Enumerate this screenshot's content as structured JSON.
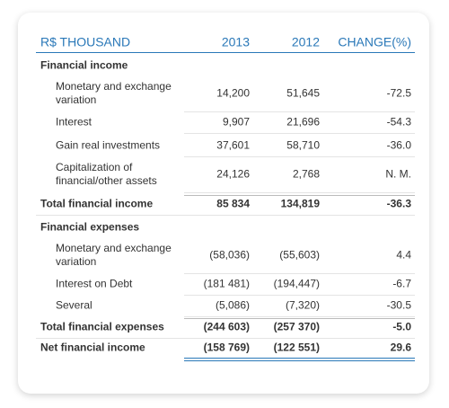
{
  "table": {
    "header": [
      "R$ THOUSAND",
      "2013",
      "2012",
      "CHANGE(%)"
    ],
    "sections": [
      {
        "title": "Financial income",
        "rows": [
          [
            "Monetary and exchange variation",
            "14,200",
            "51,645",
            "-72.5"
          ],
          [
            "Interest",
            "9,907",
            "21,696",
            "-54.3"
          ],
          [
            "Gain real investments",
            "37,601",
            "58,710",
            "-36.0"
          ],
          [
            "Capitalization of financial/other assets",
            "24,126",
            "2,768",
            "N. M."
          ]
        ],
        "total": [
          "Total financial income",
          "85 834",
          "134,819",
          "-36.3"
        ]
      },
      {
        "title": "Financial expenses",
        "rows": [
          [
            "Monetary and exchange variation",
            "(58,036)",
            "(55,603)",
            "4.4"
          ],
          [
            "Interest on Debt",
            "(181 481)",
            "(194,447)",
            "-6.7"
          ],
          [
            "Several",
            "(5,086)",
            "(7,320)",
            "-30.5"
          ]
        ],
        "total": [
          "Total financial expenses",
          "(244 603)",
          "(257 370)",
          "-5.0"
        ]
      }
    ],
    "net": [
      "Net financial income",
      "(158 769)",
      "(122 551)",
      "29.6"
    ]
  }
}
